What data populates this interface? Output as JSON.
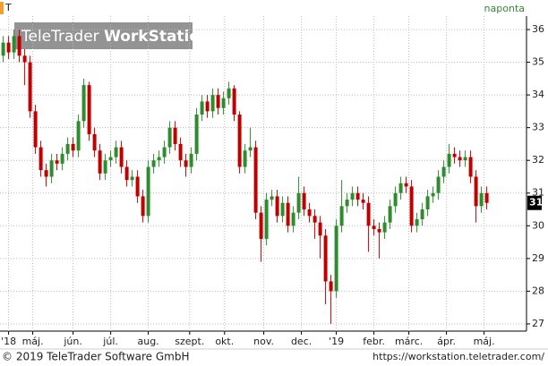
{
  "chart_data": {
    "type": "candlestick",
    "symbol_marker": "T",
    "interval": "naponta",
    "logo_brand": "TeleTrader",
    "logo_product": "WorkStation",
    "copyright": "© 2019 TeleTrader Software GmbH",
    "url": "https://workstation.teletrader.com/",
    "up_color": "#2e8b2e",
    "down_color": "#c00000",
    "grid": true,
    "ylim": [
      26.78,
      36.41
    ],
    "yticks": [
      27,
      28,
      29,
      30,
      31,
      32,
      33,
      34,
      35,
      36
    ],
    "xlim": [
      -0.6,
      97.4
    ],
    "xticks": [
      {
        "value": 1,
        "label": "'18"
      },
      {
        "value": 5.5,
        "label": "máj."
      },
      {
        "value": 13,
        "label": "jún."
      },
      {
        "value": 20,
        "label": "júl."
      },
      {
        "value": 27,
        "label": "aug."
      },
      {
        "value": 34.7,
        "label": "szept."
      },
      {
        "value": 41.2,
        "label": "okt."
      },
      {
        "value": 48.5,
        "label": "nov."
      },
      {
        "value": 55.5,
        "label": "dec."
      },
      {
        "value": 62,
        "label": "'19"
      },
      {
        "value": 69,
        "label": "febr."
      },
      {
        "value": 75.5,
        "label": "márc."
      },
      {
        "value": 82.5,
        "label": "ápr."
      },
      {
        "value": 89.5,
        "label": "máj."
      }
    ],
    "last_label": {
      "value": 30.7,
      "label": "31"
    },
    "open": [
      35.2,
      35.6,
      35.3,
      35.8,
      35.2,
      35.0,
      33.5,
      32.4,
      31.7,
      31.5,
      32.0,
      31.9,
      32.2,
      32.5,
      32.3,
      33.2,
      34.3,
      32.8,
      32.3,
      31.6,
      32.0,
      32.1,
      32.4,
      31.8,
      31.4,
      31.5,
      30.9,
      30.3,
      31.8,
      32.0,
      32.1,
      32.4,
      33.0,
      32.5,
      32.0,
      31.8,
      32.2,
      33.4,
      33.8,
      33.5,
      34.0,
      33.6,
      33.9,
      34.2,
      33.4,
      31.8,
      32.3,
      32.4,
      30.4,
      29.6,
      30.8,
      30.9,
      30.3,
      30.7,
      30.0,
      30.4,
      31.0,
      30.5,
      30.3,
      30.1,
      29.7,
      28.3,
      28.0,
      30.0,
      30.6,
      30.8,
      31.0,
      30.8,
      30.7,
      30.0,
      29.9,
      29.8,
      30.1,
      30.6,
      31.0,
      31.3,
      31.2,
      30.0,
      30.2,
      30.5,
      30.9,
      31.0,
      31.5,
      31.8,
      32.2,
      32.1,
      32.0,
      32.1,
      31.5,
      30.6,
      31.0
    ],
    "high": [
      35.8,
      35.8,
      36.0,
      36.0,
      35.4,
      35.2,
      33.7,
      32.6,
      31.9,
      32.2,
      32.2,
      32.4,
      32.7,
      32.7,
      33.4,
      34.5,
      34.4,
      33.0,
      32.5,
      32.2,
      32.3,
      32.6,
      32.6,
      32.0,
      31.7,
      31.7,
      31.1,
      32.0,
      32.2,
      32.3,
      32.6,
      33.2,
      33.2,
      32.7,
      32.2,
      32.4,
      33.6,
      34.0,
      34.0,
      34.2,
      34.2,
      34.1,
      34.4,
      34.3,
      33.5,
      32.5,
      33.0,
      32.6,
      30.6,
      31.0,
      31.1,
      31.1,
      30.9,
      30.9,
      30.6,
      31.5,
      31.2,
      30.7,
      30.5,
      30.3,
      29.9,
      28.5,
      30.2,
      31.4,
      31.0,
      31.2,
      31.2,
      31.0,
      30.9,
      30.2,
      30.1,
      30.3,
      30.8,
      31.2,
      31.5,
      31.5,
      31.4,
      30.4,
      30.7,
      31.1,
      31.2,
      31.7,
      32.0,
      32.5,
      32.4,
      32.3,
      32.3,
      32.3,
      31.7,
      31.2,
      31.2
    ],
    "low": [
      35.0,
      35.1,
      35.1,
      35.0,
      34.3,
      33.3,
      32.2,
      31.5,
      31.2,
      31.3,
      31.7,
      31.7,
      32.0,
      32.1,
      32.1,
      33.0,
      32.6,
      32.1,
      31.4,
      31.4,
      31.8,
      31.9,
      31.6,
      31.2,
      31.2,
      30.7,
      30.1,
      30.1,
      31.6,
      31.8,
      31.9,
      32.2,
      32.3,
      31.8,
      31.5,
      31.6,
      32.0,
      33.2,
      33.3,
      33.3,
      33.4,
      33.4,
      33.7,
      33.2,
      31.6,
      31.6,
      32.1,
      30.2,
      28.9,
      29.4,
      30.6,
      30.1,
      30.1,
      29.8,
      29.8,
      30.2,
      30.3,
      30.1,
      29.6,
      29.0,
      27.6,
      27.0,
      27.8,
      29.8,
      30.4,
      30.6,
      30.6,
      30.5,
      29.2,
      29.7,
      29.0,
      29.6,
      29.9,
      30.4,
      30.8,
      31.0,
      29.8,
      29.8,
      30.0,
      30.3,
      30.7,
      30.8,
      31.3,
      31.6,
      31.9,
      31.8,
      31.8,
      31.3,
      30.1,
      30.4,
      30.5
    ],
    "close": [
      35.6,
      35.3,
      35.8,
      35.2,
      35.0,
      33.5,
      32.4,
      31.7,
      31.5,
      32.0,
      31.9,
      32.2,
      32.5,
      32.3,
      33.2,
      34.3,
      32.8,
      32.3,
      31.6,
      32.0,
      32.1,
      32.4,
      31.8,
      31.4,
      31.5,
      30.9,
      30.3,
      31.8,
      32.0,
      32.1,
      32.4,
      33.0,
      32.5,
      32.0,
      31.8,
      32.2,
      33.4,
      33.8,
      33.5,
      34.0,
      33.6,
      33.9,
      34.2,
      33.4,
      31.8,
      32.3,
      32.4,
      30.4,
      29.6,
      30.8,
      30.9,
      30.3,
      30.7,
      30.0,
      30.4,
      31.0,
      30.5,
      30.3,
      30.1,
      29.7,
      28.3,
      28.0,
      30.0,
      30.6,
      30.8,
      31.0,
      30.8,
      30.7,
      30.0,
      29.9,
      29.8,
      30.1,
      30.6,
      31.0,
      31.3,
      31.2,
      30.0,
      30.2,
      30.5,
      30.9,
      31.0,
      31.5,
      31.8,
      32.2,
      32.1,
      32.0,
      32.1,
      31.5,
      30.6,
      31.0,
      30.7
    ]
  }
}
